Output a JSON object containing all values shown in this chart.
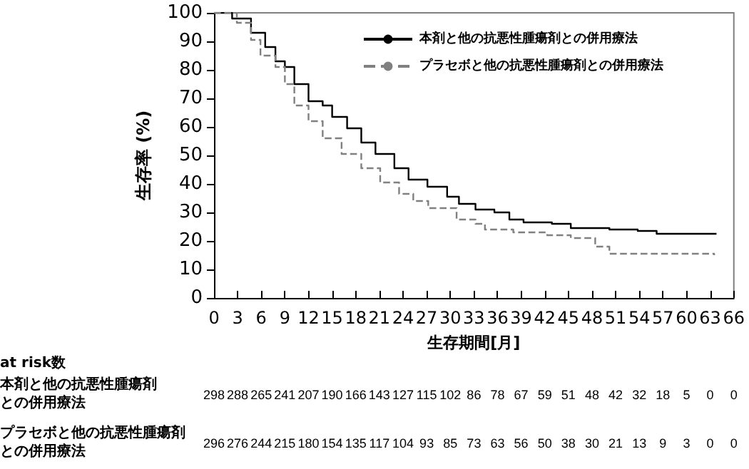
{
  "chart_data": {
    "type": "step",
    "xlabel": "生存期間[月]",
    "ylabel": "生存率 (%)",
    "xlim": [
      0,
      66
    ],
    "xticks": [
      0,
      3,
      6,
      9,
      12,
      15,
      18,
      21,
      24,
      27,
      30,
      33,
      36,
      39,
      42,
      45,
      48,
      51,
      54,
      57,
      60,
      63,
      66
    ],
    "ylim": [
      0,
      100
    ],
    "yticks": [
      0,
      10,
      20,
      30,
      40,
      50,
      60,
      70,
      80,
      90,
      100
    ],
    "grid": false,
    "legend": "top right",
    "marker": "none",
    "series": [
      {
        "name": "本剤と他の抗悪性腫瘍剤との併用療法",
        "color": "#000000",
        "line_style": "solid",
        "x": [
          0,
          2.3,
          4.7,
          6.5,
          7.8,
          9,
          10.2,
          12,
          13.8,
          15,
          16.9,
          18.7,
          20.5,
          22.9,
          24.7,
          27.1,
          29.6,
          31.1,
          33.2,
          35.6,
          37.5,
          39.3,
          42.9,
          45.3,
          50.2,
          53.8,
          56.2,
          63.8
        ],
        "values": [
          100,
          98,
          93,
          88,
          83,
          81,
          75,
          69,
          67.5,
          63.5,
          59.5,
          54.5,
          50.5,
          45.5,
          41.5,
          39,
          35.5,
          33,
          31,
          30,
          27.5,
          26.5,
          26,
          24.5,
          24,
          23.5,
          22.5,
          22.5
        ]
      },
      {
        "name": "プラセボと他の抗悪性腫瘍剤との併用療法",
        "color": "#808080",
        "line_style": "dashed",
        "x": [
          0,
          2.9,
          4.7,
          5.9,
          7.8,
          9,
          10.2,
          12,
          13.8,
          16.2,
          18.7,
          21.1,
          23.5,
          25.3,
          27.2,
          30.8,
          33.2,
          34.4,
          38,
          42.3,
          45.3,
          48.4,
          50.2,
          63.5
        ],
        "values": [
          100,
          96.5,
          90.5,
          85,
          81,
          75,
          67.5,
          62,
          56,
          50.5,
          45.5,
          40.5,
          36.5,
          34,
          31.5,
          27.5,
          26,
          24,
          23,
          22,
          21,
          18,
          15.5,
          15
        ]
      }
    ],
    "annotations": [
      "at risk数",
      "本剤と他の抗悪性腫瘍剤",
      "との併用療法",
      "298 288 265 241 207 190 166 143 127 115 102 86 78 67 59 51 48 42 32 18 5 0 0",
      "プラセボと他の抗悪性腫瘍剤",
      "との併用療法",
      "296 276 244 215 180 154 135 117 104 93 85 73 63 56 50 38 30 21 13 9 3 0 0"
    ]
  }
}
